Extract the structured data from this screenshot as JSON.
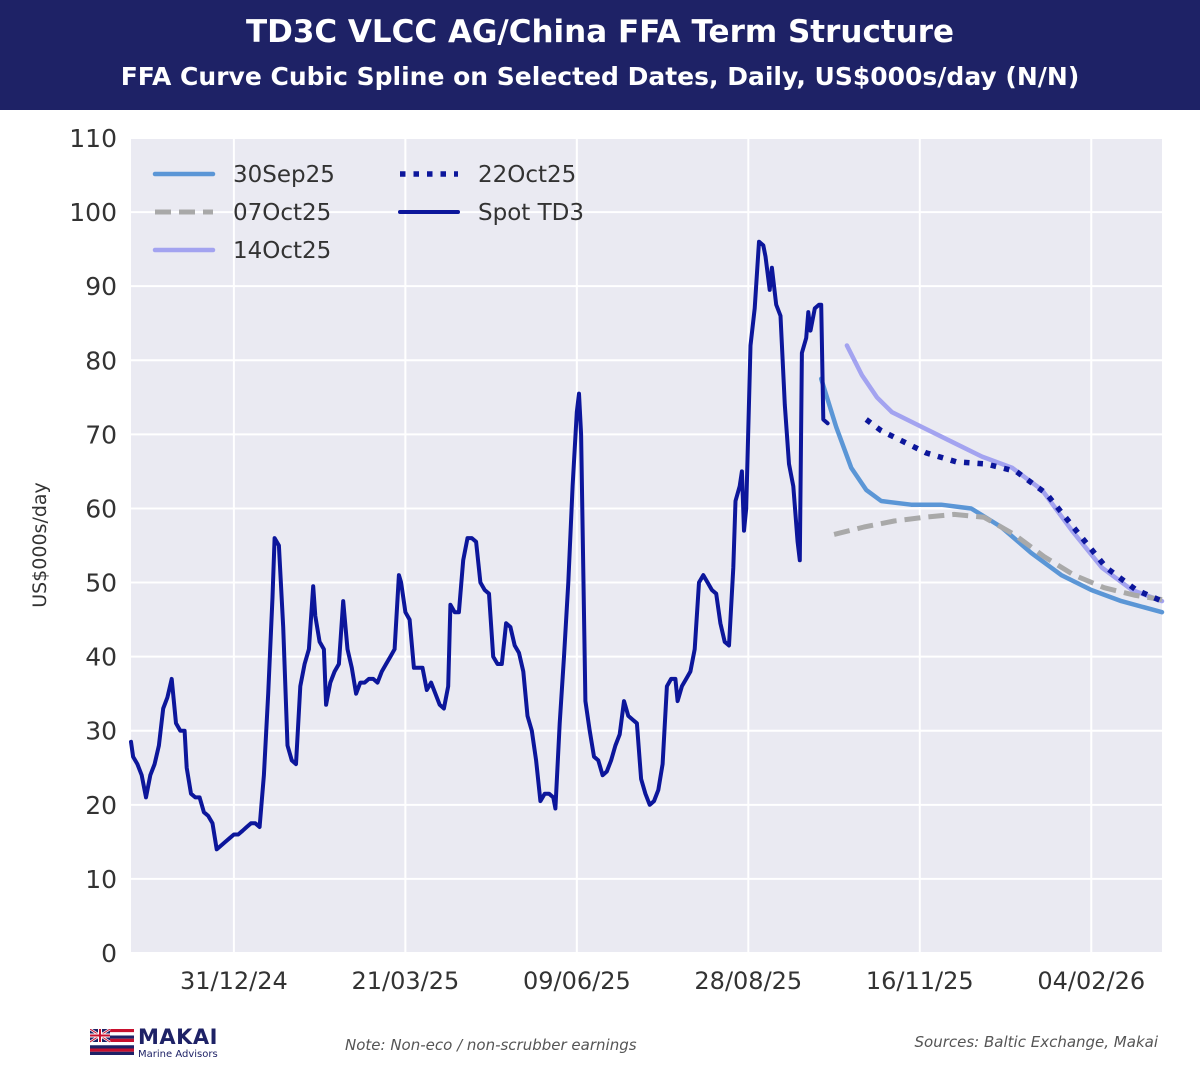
{
  "header": {
    "title": "TD3C VLCC AG/China FFA Term Structure",
    "subtitle": "FFA Curve Cubic Spline on Selected Dates, Daily, US$000s/day (N/N)"
  },
  "footer": {
    "note": "Note: Non-eco / non-scrubber earnings",
    "sources": "Sources: Baltic Exchange, Makai",
    "logo_name": "MAKAI",
    "logo_sub": "Marine Advisors"
  },
  "colors": {
    "header_bg": "#1e2266",
    "plot_bg": "#eaeaf2",
    "grid": "#ffffff",
    "spot": "#0c169b",
    "s30sep": "#5b96d6",
    "s07oct": "#a9a9a9",
    "s14oct": "#a3a3f0",
    "s22oct": "#0c169b"
  },
  "chart_data": {
    "type": "line",
    "ylabel": "US$000s/day",
    "ylim": [
      0,
      110
    ],
    "yticks": [
      0,
      10,
      20,
      30,
      40,
      50,
      60,
      70,
      80,
      90,
      100,
      110
    ],
    "xlim": [
      "2024-11-13",
      "2026-03-09"
    ],
    "xticks": [
      {
        "date": "2024-12-31",
        "label": "31/12/24"
      },
      {
        "date": "2025-03-21",
        "label": "21/03/25"
      },
      {
        "date": "2025-06-09",
        "label": "09/06/25"
      },
      {
        "date": "2025-08-28",
        "label": "28/08/25"
      },
      {
        "date": "2025-11-16",
        "label": "16/11/25"
      },
      {
        "date": "2026-02-04",
        "label": "04/02/26"
      }
    ],
    "grid": true,
    "legend_position": "top-left",
    "series": [
      {
        "name": "30Sep25",
        "style": "solid",
        "color_key": "s30sep",
        "points": [
          [
            "2025-10-01",
            77.5
          ],
          [
            "2025-10-08",
            71
          ],
          [
            "2025-10-15",
            65.5
          ],
          [
            "2025-10-22",
            62.5
          ],
          [
            "2025-10-29",
            61
          ],
          [
            "2025-11-12",
            60.5
          ],
          [
            "2025-11-26",
            60.5
          ],
          [
            "2025-12-10",
            60
          ],
          [
            "2025-12-24",
            57.5
          ],
          [
            "2026-01-07",
            54
          ],
          [
            "2026-01-21",
            51
          ],
          [
            "2026-02-04",
            49
          ],
          [
            "2026-02-18",
            47.5
          ],
          [
            "2026-03-09",
            46
          ]
        ]
      },
      {
        "name": "07Oct25",
        "style": "dashed",
        "color_key": "s07oct",
        "points": [
          [
            "2025-10-07",
            56.5
          ],
          [
            "2025-10-21",
            57.5
          ],
          [
            "2025-11-04",
            58.3
          ],
          [
            "2025-11-18",
            58.8
          ],
          [
            "2025-12-02",
            59.2
          ],
          [
            "2025-12-16",
            58.8
          ],
          [
            "2025-12-30",
            56.5
          ],
          [
            "2026-01-13",
            53.5
          ],
          [
            "2026-01-27",
            51
          ],
          [
            "2026-02-10",
            49.3
          ],
          [
            "2026-02-24",
            48.3
          ],
          [
            "2026-03-09",
            47.7
          ]
        ]
      },
      {
        "name": "14Oct25",
        "style": "solid",
        "color_key": "s14oct",
        "points": [
          [
            "2025-10-13",
            82
          ],
          [
            "2025-10-20",
            78
          ],
          [
            "2025-10-27",
            75
          ],
          [
            "2025-11-03",
            73
          ],
          [
            "2025-11-17",
            71
          ],
          [
            "2025-12-01",
            69
          ],
          [
            "2025-12-15",
            67
          ],
          [
            "2025-12-29",
            65.5
          ],
          [
            "2026-01-12",
            62.5
          ],
          [
            "2026-01-26",
            57
          ],
          [
            "2026-02-09",
            52
          ],
          [
            "2026-02-23",
            49
          ],
          [
            "2026-03-09",
            47.5
          ]
        ]
      },
      {
        "name": "22Oct25",
        "style": "dotted",
        "color_key": "s22oct",
        "points": [
          [
            "2025-10-22",
            72
          ],
          [
            "2025-10-29",
            70.5
          ],
          [
            "2025-11-05",
            69.5
          ],
          [
            "2025-11-19",
            67.5
          ],
          [
            "2025-12-03",
            66.3
          ],
          [
            "2025-12-17",
            66
          ],
          [
            "2025-12-31",
            65
          ],
          [
            "2026-01-14",
            62
          ],
          [
            "2026-01-28",
            57
          ],
          [
            "2026-02-11",
            52
          ],
          [
            "2026-02-25",
            49
          ],
          [
            "2026-03-09",
            47.5
          ]
        ]
      },
      {
        "name": "Spot TD3",
        "style": "solid",
        "color_key": "spot",
        "points": [
          [
            "2024-11-13",
            28.5
          ],
          [
            "2024-11-14",
            26.5
          ],
          [
            "2024-11-16",
            25.5
          ],
          [
            "2024-11-18",
            24
          ],
          [
            "2024-11-20",
            21
          ],
          [
            "2024-11-22",
            24
          ],
          [
            "2024-11-24",
            25.5
          ],
          [
            "2024-11-26",
            28
          ],
          [
            "2024-11-28",
            33
          ],
          [
            "2024-11-30",
            34.5
          ],
          [
            "2024-12-02",
            37
          ],
          [
            "2024-12-04",
            31
          ],
          [
            "2024-12-06",
            30
          ],
          [
            "2024-12-08",
            30
          ],
          [
            "2024-12-09",
            25
          ],
          [
            "2024-12-11",
            21.5
          ],
          [
            "2024-12-13",
            21
          ],
          [
            "2024-12-15",
            21
          ],
          [
            "2024-12-17",
            19
          ],
          [
            "2024-12-19",
            18.5
          ],
          [
            "2024-12-21",
            17.5
          ],
          [
            "2024-12-23",
            14
          ],
          [
            "2024-12-25",
            14.5
          ],
          [
            "2024-12-27",
            15
          ],
          [
            "2024-12-29",
            15.5
          ],
          [
            "2024-12-31",
            16
          ],
          [
            "2025-01-02",
            16
          ],
          [
            "2025-01-04",
            16.5
          ],
          [
            "2025-01-06",
            17
          ],
          [
            "2025-01-08",
            17.5
          ],
          [
            "2025-01-10",
            17.5
          ],
          [
            "2025-01-12",
            17
          ],
          [
            "2025-01-14",
            24
          ],
          [
            "2025-01-16",
            35
          ],
          [
            "2025-01-18",
            48
          ],
          [
            "2025-01-19",
            56
          ],
          [
            "2025-01-21",
            55
          ],
          [
            "2025-01-23",
            44
          ],
          [
            "2025-01-25",
            28
          ],
          [
            "2025-01-27",
            26
          ],
          [
            "2025-01-29",
            25.5
          ],
          [
            "2025-01-31",
            36
          ],
          [
            "2025-02-02",
            39
          ],
          [
            "2025-02-04",
            41
          ],
          [
            "2025-02-06",
            49.5
          ],
          [
            "2025-02-07",
            45.5
          ],
          [
            "2025-02-09",
            42
          ],
          [
            "2025-02-11",
            41
          ],
          [
            "2025-02-12",
            33.5
          ],
          [
            "2025-02-14",
            36.5
          ],
          [
            "2025-02-16",
            38
          ],
          [
            "2025-02-18",
            39
          ],
          [
            "2025-02-20",
            47.5
          ],
          [
            "2025-02-22",
            41
          ],
          [
            "2025-02-24",
            38.5
          ],
          [
            "2025-02-26",
            35
          ],
          [
            "2025-02-28",
            36.5
          ],
          [
            "2025-03-02",
            36.5
          ],
          [
            "2025-03-04",
            37
          ],
          [
            "2025-03-06",
            37
          ],
          [
            "2025-03-08",
            36.5
          ],
          [
            "2025-03-10",
            38
          ],
          [
            "2025-03-12",
            39
          ],
          [
            "2025-03-14",
            40
          ],
          [
            "2025-03-16",
            41
          ],
          [
            "2025-03-18",
            51
          ],
          [
            "2025-03-19",
            50
          ],
          [
            "2025-03-21",
            46
          ],
          [
            "2025-03-23",
            45
          ],
          [
            "2025-03-25",
            38.5
          ],
          [
            "2025-03-27",
            38.5
          ],
          [
            "2025-03-29",
            38.5
          ],
          [
            "2025-03-31",
            35.5
          ],
          [
            "2025-04-02",
            36.5
          ],
          [
            "2025-04-04",
            35
          ],
          [
            "2025-04-06",
            33.5
          ],
          [
            "2025-04-08",
            33
          ],
          [
            "2025-04-10",
            36
          ],
          [
            "2025-04-11",
            47
          ],
          [
            "2025-04-13",
            46
          ],
          [
            "2025-04-15",
            46
          ],
          [
            "2025-04-17",
            53
          ],
          [
            "2025-04-19",
            56
          ],
          [
            "2025-04-21",
            56
          ],
          [
            "2025-04-23",
            55.5
          ],
          [
            "2025-04-25",
            50
          ],
          [
            "2025-04-27",
            49
          ],
          [
            "2025-04-29",
            48.5
          ],
          [
            "2025-05-01",
            40
          ],
          [
            "2025-05-03",
            39
          ],
          [
            "2025-05-05",
            39
          ],
          [
            "2025-05-07",
            44.5
          ],
          [
            "2025-05-09",
            44
          ],
          [
            "2025-05-11",
            41.5
          ],
          [
            "2025-05-13",
            40.5
          ],
          [
            "2025-05-15",
            38
          ],
          [
            "2025-05-17",
            32
          ],
          [
            "2025-05-19",
            30
          ],
          [
            "2025-05-21",
            26
          ],
          [
            "2025-05-23",
            20.5
          ],
          [
            "2025-05-25",
            21.5
          ],
          [
            "2025-05-27",
            21.5
          ],
          [
            "2025-05-29",
            21
          ],
          [
            "2025-05-30",
            19.5
          ],
          [
            "2025-06-01",
            31
          ],
          [
            "2025-06-03",
            40
          ],
          [
            "2025-06-05",
            50
          ],
          [
            "2025-06-07",
            63
          ],
          [
            "2025-06-09",
            73
          ],
          [
            "2025-06-10",
            75.5
          ],
          [
            "2025-06-11",
            70
          ],
          [
            "2025-06-13",
            34
          ],
          [
            "2025-06-15",
            30
          ],
          [
            "2025-06-17",
            26.5
          ],
          [
            "2025-06-19",
            26
          ],
          [
            "2025-06-21",
            24
          ],
          [
            "2025-06-23",
            24.5
          ],
          [
            "2025-06-25",
            26
          ],
          [
            "2025-06-27",
            28
          ],
          [
            "2025-06-29",
            29.5
          ],
          [
            "2025-07-01",
            34
          ],
          [
            "2025-07-03",
            32
          ],
          [
            "2025-07-05",
            31.5
          ],
          [
            "2025-07-07",
            31
          ],
          [
            "2025-07-09",
            23.5
          ],
          [
            "2025-07-11",
            21.5
          ],
          [
            "2025-07-13",
            20
          ],
          [
            "2025-07-15",
            20.5
          ],
          [
            "2025-07-17",
            22
          ],
          [
            "2025-07-19",
            25.5
          ],
          [
            "2025-07-21",
            36
          ],
          [
            "2025-07-23",
            37
          ],
          [
            "2025-07-25",
            37
          ],
          [
            "2025-07-26",
            34
          ],
          [
            "2025-07-28",
            36
          ],
          [
            "2025-07-30",
            37
          ],
          [
            "2025-08-01",
            38
          ],
          [
            "2025-08-03",
            41
          ],
          [
            "2025-08-05",
            50
          ],
          [
            "2025-08-07",
            51
          ],
          [
            "2025-08-09",
            50
          ],
          [
            "2025-08-11",
            49
          ],
          [
            "2025-08-13",
            48.5
          ],
          [
            "2025-08-15",
            44.5
          ],
          [
            "2025-08-17",
            42
          ],
          [
            "2025-08-19",
            41.5
          ],
          [
            "2025-08-21",
            52
          ],
          [
            "2025-08-22",
            61
          ],
          [
            "2025-08-24",
            63
          ],
          [
            "2025-08-25",
            65
          ],
          [
            "2025-08-26",
            57
          ],
          [
            "2025-08-27",
            60
          ],
          [
            "2025-08-29",
            82
          ],
          [
            "2025-08-31",
            87
          ],
          [
            "2025-09-02",
            96
          ],
          [
            "2025-09-04",
            95.5
          ],
          [
            "2025-09-05",
            94
          ],
          [
            "2025-09-07",
            89.5
          ],
          [
            "2025-09-08",
            92.5
          ],
          [
            "2025-09-10",
            87.5
          ],
          [
            "2025-09-12",
            86
          ],
          [
            "2025-09-14",
            74
          ],
          [
            "2025-09-16",
            66
          ],
          [
            "2025-09-18",
            63
          ],
          [
            "2025-09-20",
            55.5
          ],
          [
            "2025-09-21",
            53
          ],
          [
            "2025-09-22",
            81
          ],
          [
            "2025-09-24",
            83
          ],
          [
            "2025-09-25",
            86.5
          ],
          [
            "2025-09-26",
            84
          ],
          [
            "2025-09-28",
            87
          ],
          [
            "2025-09-30",
            87.5
          ],
          [
            "2025-10-01",
            87.5
          ],
          [
            "2025-10-02",
            72
          ],
          [
            "2025-10-04",
            71.5
          ]
        ]
      }
    ]
  }
}
